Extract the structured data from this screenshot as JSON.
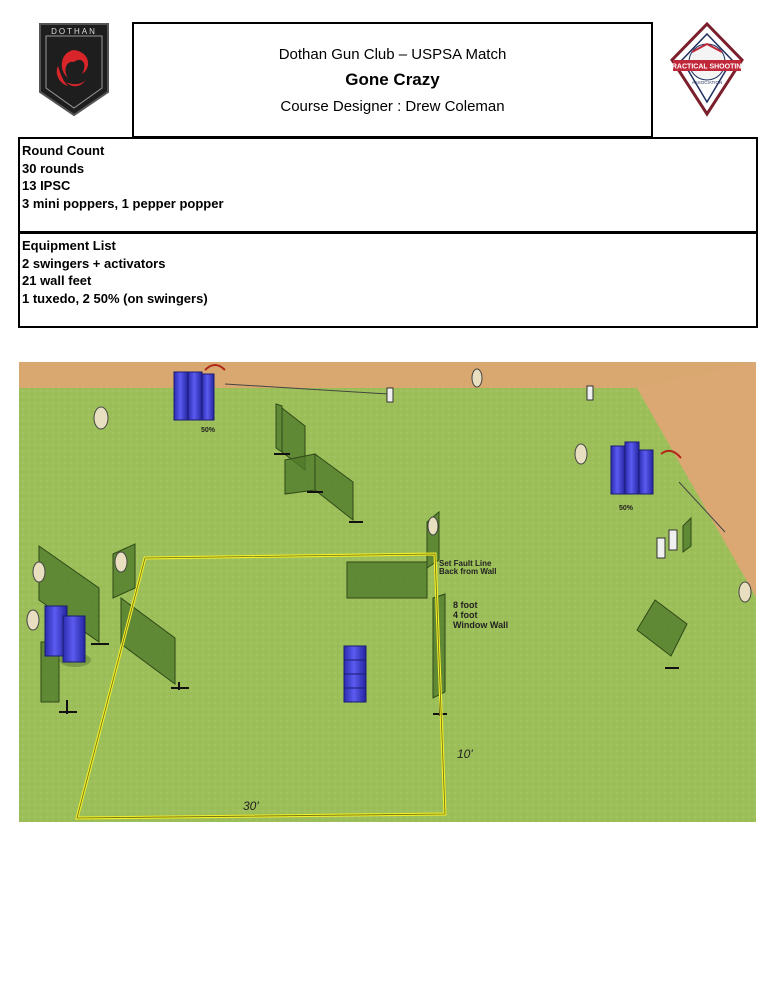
{
  "header": {
    "club_logo_text": "DOTHAN",
    "title_line1": "Dothan Gun Club – USPSA Match",
    "stage_name": "Gone Crazy",
    "designer_line": "Course Designer : Drew Coleman",
    "uspsa_logo_text": "PRACTICAL SHOOTING",
    "uspsa_logo_ring": "UNITED STATES · ASSOCIATION"
  },
  "round_count": {
    "heading": "Round Count",
    "lines": [
      "30 rounds",
      "13 IPSC",
      "3 mini poppers, 1 pepper popper"
    ]
  },
  "equipment": {
    "heading": "Equipment List",
    "lines": [
      "2 swingers + activators",
      "21 wall feet",
      "1 tuxedo, 2 50% (on swingers)"
    ]
  },
  "stage_diagram": {
    "label_50_left": "50%",
    "label_50_right": "50%",
    "fault_line_note": [
      "Set Fault Line",
      "Back from Wall"
    ],
    "window_wall_note": [
      "8 foot",
      "4 foot",
      "Window Wall"
    ],
    "dim_width": "30'",
    "dim_depth": "10'",
    "colors": {
      "grass": "#9dbf5a",
      "berm": "#d9a770",
      "wall": "#4f7a2a",
      "barrel": "#4a4adf",
      "fault_line": "#f2ef2a"
    }
  }
}
